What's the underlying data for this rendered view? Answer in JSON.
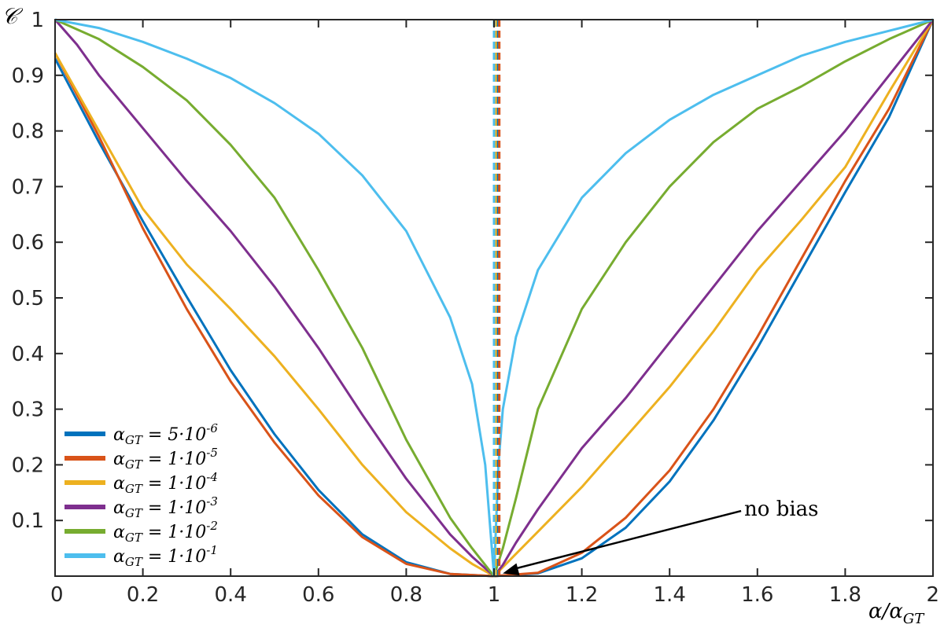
{
  "chart_data": {
    "type": "line",
    "xlabel": "α/α_GT",
    "ylabel": "𝒞",
    "xlim": [
      0,
      2
    ],
    "ylim": [
      0,
      1
    ],
    "x_ticks": [
      0,
      0.2,
      0.4,
      0.6,
      0.8,
      1,
      1.2,
      1.4,
      1.6,
      1.8,
      2
    ],
    "x_tick_labels": [
      "0",
      "0.2",
      "0.4",
      "0.6",
      "0.8",
      "1",
      "1.2",
      "1.4",
      "1.6",
      "1.8",
      "2"
    ],
    "y_ticks": [
      0.1,
      0.2,
      0.3,
      0.4,
      0.5,
      0.6,
      0.7,
      0.8,
      0.9,
      1
    ],
    "y_tick_labels": [
      "0.1",
      "0.2",
      "0.3",
      "0.4",
      "0.5",
      "0.6",
      "0.7",
      "0.8",
      "0.9",
      "1"
    ],
    "grid": false,
    "legend_position": "bottom-left",
    "series": [
      {
        "name": "α_GT = 5·10^-6",
        "color": "#0072BD",
        "min_x": 1.008,
        "points": [
          [
            0,
            0.93
          ],
          [
            0.05,
            0.855
          ],
          [
            0.1,
            0.78
          ],
          [
            0.2,
            0.638
          ],
          [
            0.3,
            0.502
          ],
          [
            0.4,
            0.37
          ],
          [
            0.5,
            0.255
          ],
          [
            0.6,
            0.155
          ],
          [
            0.7,
            0.075
          ],
          [
            0.8,
            0.025
          ],
          [
            0.9,
            0.004
          ],
          [
            1.0,
            0.0
          ],
          [
            1.1,
            0.005
          ],
          [
            1.2,
            0.032
          ],
          [
            1.3,
            0.087
          ],
          [
            1.4,
            0.17
          ],
          [
            1.5,
            0.28
          ],
          [
            1.6,
            0.41
          ],
          [
            1.7,
            0.55
          ],
          [
            1.8,
            0.69
          ],
          [
            1.9,
            0.825
          ],
          [
            2.0,
            1.0
          ]
        ]
      },
      {
        "name": "α_GT = 1·10^-5",
        "color": "#D95319",
        "min_x": 1.012,
        "points": [
          [
            0,
            0.94
          ],
          [
            0.05,
            0.865
          ],
          [
            0.1,
            0.79
          ],
          [
            0.2,
            0.625
          ],
          [
            0.3,
            0.48
          ],
          [
            0.4,
            0.35
          ],
          [
            0.5,
            0.24
          ],
          [
            0.6,
            0.145
          ],
          [
            0.7,
            0.07
          ],
          [
            0.8,
            0.022
          ],
          [
            0.9,
            0.004
          ],
          [
            1.0,
            0.0
          ],
          [
            1.1,
            0.006
          ],
          [
            1.2,
            0.042
          ],
          [
            1.3,
            0.105
          ],
          [
            1.4,
            0.19
          ],
          [
            1.5,
            0.3
          ],
          [
            1.6,
            0.43
          ],
          [
            1.7,
            0.57
          ],
          [
            1.8,
            0.71
          ],
          [
            1.9,
            0.84
          ],
          [
            2.0,
            1.0
          ]
        ]
      },
      {
        "name": "α_GT = 1·10^-4",
        "color": "#EDB120",
        "min_x": 1.004,
        "points": [
          [
            0,
            0.94
          ],
          [
            0.05,
            0.87
          ],
          [
            0.1,
            0.8
          ],
          [
            0.2,
            0.66
          ],
          [
            0.3,
            0.56
          ],
          [
            0.4,
            0.48
          ],
          [
            0.5,
            0.395
          ],
          [
            0.6,
            0.3
          ],
          [
            0.7,
            0.2
          ],
          [
            0.8,
            0.115
          ],
          [
            0.9,
            0.05
          ],
          [
            0.95,
            0.022
          ],
          [
            1.0,
            0.0
          ],
          [
            1.05,
            0.04
          ],
          [
            1.1,
            0.08
          ],
          [
            1.2,
            0.16
          ],
          [
            1.3,
            0.25
          ],
          [
            1.4,
            0.34
          ],
          [
            1.5,
            0.44
          ],
          [
            1.6,
            0.55
          ],
          [
            1.7,
            0.64
          ],
          [
            1.8,
            0.735
          ],
          [
            1.9,
            0.87
          ],
          [
            2.0,
            1.0
          ]
        ]
      },
      {
        "name": "α_GT = 1·10^-3",
        "color": "#7E2F8E",
        "min_x": 1.0,
        "points": [
          [
            0,
            1.0
          ],
          [
            0.05,
            0.955
          ],
          [
            0.1,
            0.9
          ],
          [
            0.2,
            0.805
          ],
          [
            0.3,
            0.71
          ],
          [
            0.4,
            0.62
          ],
          [
            0.5,
            0.52
          ],
          [
            0.6,
            0.41
          ],
          [
            0.7,
            0.29
          ],
          [
            0.8,
            0.175
          ],
          [
            0.9,
            0.075
          ],
          [
            0.95,
            0.035
          ],
          [
            1.0,
            0.0
          ],
          [
            1.02,
            0.02
          ],
          [
            1.05,
            0.06
          ],
          [
            1.1,
            0.12
          ],
          [
            1.2,
            0.23
          ],
          [
            1.3,
            0.32
          ],
          [
            1.4,
            0.42
          ],
          [
            1.5,
            0.52
          ],
          [
            1.6,
            0.62
          ],
          [
            1.7,
            0.71
          ],
          [
            1.8,
            0.8
          ],
          [
            1.9,
            0.9
          ],
          [
            2.0,
            1.0
          ]
        ]
      },
      {
        "name": "α_GT = 1·10^-2",
        "color": "#77AC30",
        "min_x": 1.0,
        "points": [
          [
            0,
            1.0
          ],
          [
            0.1,
            0.965
          ],
          [
            0.2,
            0.915
          ],
          [
            0.3,
            0.855
          ],
          [
            0.4,
            0.775
          ],
          [
            0.5,
            0.68
          ],
          [
            0.6,
            0.55
          ],
          [
            0.7,
            0.41
          ],
          [
            0.8,
            0.245
          ],
          [
            0.9,
            0.105
          ],
          [
            0.95,
            0.05
          ],
          [
            0.98,
            0.02
          ],
          [
            1.0,
            0.0
          ],
          [
            1.02,
            0.05
          ],
          [
            1.05,
            0.14
          ],
          [
            1.1,
            0.3
          ],
          [
            1.2,
            0.48
          ],
          [
            1.3,
            0.6
          ],
          [
            1.4,
            0.7
          ],
          [
            1.5,
            0.78
          ],
          [
            1.6,
            0.84
          ],
          [
            1.7,
            0.88
          ],
          [
            1.8,
            0.925
          ],
          [
            1.9,
            0.965
          ],
          [
            2.0,
            1.0
          ]
        ]
      },
      {
        "name": "α_GT = 1·10^-1",
        "color": "#4DBEEE",
        "min_x": 1.0,
        "points": [
          [
            0,
            1.0
          ],
          [
            0.1,
            0.985
          ],
          [
            0.2,
            0.96
          ],
          [
            0.3,
            0.93
          ],
          [
            0.4,
            0.895
          ],
          [
            0.5,
            0.85
          ],
          [
            0.6,
            0.795
          ],
          [
            0.7,
            0.72
          ],
          [
            0.8,
            0.62
          ],
          [
            0.9,
            0.465
          ],
          [
            0.95,
            0.345
          ],
          [
            0.98,
            0.2
          ],
          [
            1.0,
            0.0
          ],
          [
            1.01,
            0.2
          ],
          [
            1.02,
            0.3
          ],
          [
            1.05,
            0.43
          ],
          [
            1.1,
            0.55
          ],
          [
            1.2,
            0.68
          ],
          [
            1.3,
            0.76
          ],
          [
            1.4,
            0.82
          ],
          [
            1.5,
            0.865
          ],
          [
            1.6,
            0.9
          ],
          [
            1.7,
            0.935
          ],
          [
            1.8,
            0.96
          ],
          [
            1.9,
            0.98
          ],
          [
            2.0,
            1.0
          ]
        ]
      }
    ],
    "annotation": {
      "text": "no bias",
      "target": [
        1.02,
        0.005
      ],
      "label_at": [
        1.57,
        0.12
      ]
    }
  }
}
